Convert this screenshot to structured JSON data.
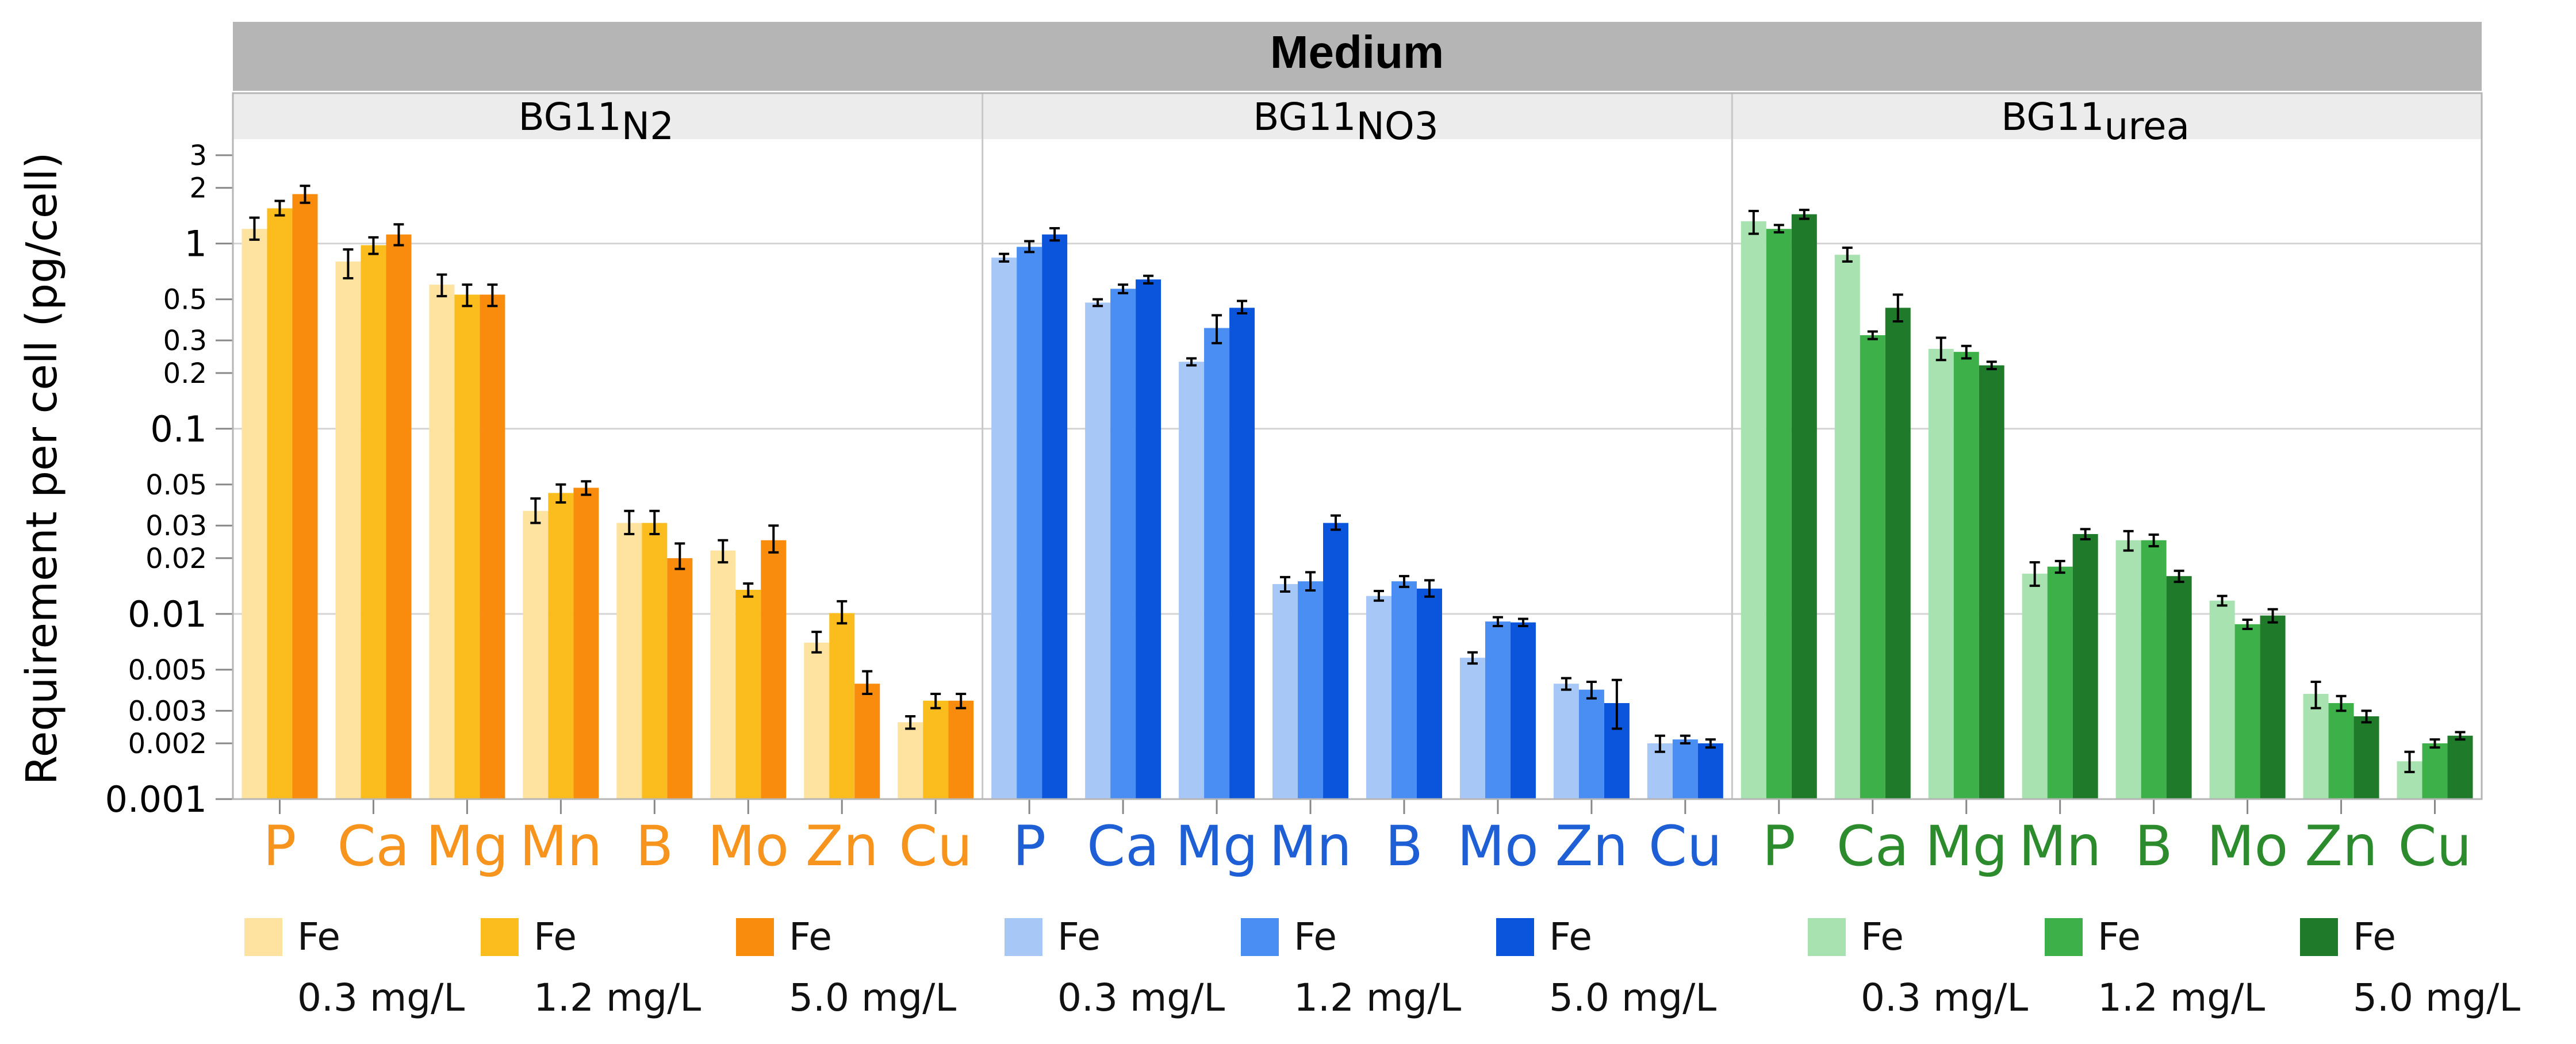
{
  "chart_data": {
    "type": "bar",
    "title": "Medium",
    "ylabel": "Requirement per cell (pg/cell)",
    "yscale": "log",
    "ylim": [
      0.001,
      3
    ],
    "grid": true,
    "yticks": [
      {
        "value": 0.001,
        "label": "0.001",
        "major": true
      },
      {
        "value": 0.002,
        "label": "0.002",
        "major": false
      },
      {
        "value": 0.003,
        "label": "0.003",
        "major": false
      },
      {
        "value": 0.005,
        "label": "0.005",
        "major": false
      },
      {
        "value": 0.01,
        "label": "0.01",
        "major": true
      },
      {
        "value": 0.02,
        "label": "0.02",
        "major": false
      },
      {
        "value": 0.03,
        "label": "0.03",
        "major": false
      },
      {
        "value": 0.05,
        "label": "0.05",
        "major": false
      },
      {
        "value": 0.1,
        "label": "0.1",
        "major": true
      },
      {
        "value": 0.2,
        "label": "0.2",
        "major": false
      },
      {
        "value": 0.3,
        "label": "0.3",
        "major": false
      },
      {
        "value": 0.5,
        "label": "0.5",
        "major": false
      },
      {
        "value": 1,
        "label": "1",
        "major": true
      },
      {
        "value": 2,
        "label": "2",
        "major": false
      },
      {
        "value": 3,
        "label": "3",
        "major": false
      }
    ],
    "categories": [
      "P",
      "Ca",
      "Mg",
      "Mn",
      "B",
      "Mo",
      "Zn",
      "Cu"
    ],
    "legend_position": "bottom",
    "panels": [
      {
        "name": "BG11",
        "subscript": "N2",
        "label_color": "#f7941d",
        "series": [
          {
            "name": "Fe 0.3 mg/L",
            "color": "#fde2a0",
            "values": [
              1.2,
              0.8,
              0.6,
              0.036,
              0.031,
              0.022,
              0.007,
              0.0026
            ],
            "lower": [
              1.05,
              0.65,
              0.52,
              0.031,
              0.027,
              0.019,
              0.0062,
              0.0024
            ],
            "upper": [
              1.38,
              0.93,
              0.68,
              0.042,
              0.036,
              0.025,
              0.008,
              0.0028
            ]
          },
          {
            "name": "Fe 1.2 mg/L",
            "color": "#fbbd1e",
            "values": [
              1.55,
              0.98,
              0.53,
              0.045,
              0.031,
              0.0135,
              0.0101,
              0.0034
            ],
            "lower": [
              1.42,
              0.88,
              0.46,
              0.04,
              0.027,
              0.0124,
              0.0089,
              0.0031
            ],
            "upper": [
              1.7,
              1.08,
              0.6,
              0.05,
              0.036,
              0.0146,
              0.0117,
              0.0037
            ]
          },
          {
            "name": "Fe 5.0 mg/L",
            "color": "#f98c0c",
            "values": [
              1.85,
              1.12,
              0.53,
              0.048,
              0.02,
              0.025,
              0.0042,
              0.0034
            ],
            "lower": [
              1.66,
              0.98,
              0.46,
              0.044,
              0.0175,
              0.0215,
              0.0037,
              0.0031
            ],
            "upper": [
              2.05,
              1.27,
              0.6,
              0.052,
              0.024,
              0.03,
              0.0049,
              0.0037
            ]
          }
        ]
      },
      {
        "name": "BG11",
        "subscript": "NO3",
        "label_color": "#1f5fd6",
        "series": [
          {
            "name": "Fe 0.3 mg/L",
            "color": "#a7c7f7",
            "values": [
              0.84,
              0.48,
              0.23,
              0.0145,
              0.0125,
              0.0058,
              0.0042,
              0.002
            ],
            "lower": [
              0.8,
              0.46,
              0.22,
              0.0132,
              0.0118,
              0.0054,
              0.0039,
              0.0018
            ],
            "upper": [
              0.88,
              0.5,
              0.24,
              0.0158,
              0.0133,
              0.0062,
              0.0045,
              0.0022
            ]
          },
          {
            "name": "Fe 1.2 mg/L",
            "color": "#4a8ef4",
            "values": [
              0.96,
              0.57,
              0.35,
              0.015,
              0.015,
              0.0091,
              0.0039,
              0.0021
            ],
            "lower": [
              0.9,
              0.54,
              0.29,
              0.0134,
              0.014,
              0.0086,
              0.0035,
              0.002
            ],
            "upper": [
              1.03,
              0.6,
              0.41,
              0.0168,
              0.016,
              0.0096,
              0.0043,
              0.0022
            ]
          },
          {
            "name": "Fe 5.0 mg/L",
            "color": "#0a55db",
            "values": [
              1.12,
              0.64,
              0.45,
              0.031,
              0.0137,
              0.009,
              0.0033,
              0.002
            ],
            "lower": [
              1.04,
              0.61,
              0.42,
              0.0285,
              0.0124,
              0.0086,
              0.0024,
              0.0019
            ],
            "upper": [
              1.21,
              0.67,
              0.49,
              0.034,
              0.0152,
              0.0094,
              0.0044,
              0.0021
            ]
          }
        ]
      },
      {
        "name": "BG11",
        "subscript": "urea",
        "label_color": "#2c8b2c",
        "series": [
          {
            "name": "Fe 0.3 mg/L",
            "color": "#a8e2b0",
            "values": [
              1.32,
              0.87,
              0.27,
              0.0165,
              0.025,
              0.0118,
              0.0037,
              0.0016
            ],
            "lower": [
              1.13,
              0.8,
              0.235,
              0.0142,
              0.022,
              0.0111,
              0.0031,
              0.0014
            ],
            "upper": [
              1.5,
              0.95,
              0.31,
              0.019,
              0.028,
              0.0125,
              0.0043,
              0.0018
            ]
          },
          {
            "name": "Fe 1.2 mg/L",
            "color": "#3eb04a",
            "values": [
              1.2,
              0.32,
              0.26,
              0.018,
              0.025,
              0.0088,
              0.0033,
              0.002
            ],
            "lower": [
              1.15,
              0.305,
              0.24,
              0.0167,
              0.0232,
              0.0083,
              0.003,
              0.0019
            ],
            "upper": [
              1.26,
              0.335,
              0.28,
              0.0193,
              0.0268,
              0.0093,
              0.0036,
              0.0021
            ]
          },
          {
            "name": "Fe 5.0 mg/L",
            "color": "#1f7a2a",
            "values": [
              1.44,
              0.45,
              0.22,
              0.027,
              0.016,
              0.0098,
              0.0028,
              0.0022
            ],
            "lower": [
              1.36,
              0.38,
              0.21,
              0.0253,
              0.0149,
              0.009,
              0.0026,
              0.0021
            ],
            "upper": [
              1.52,
              0.53,
              0.23,
              0.0287,
              0.0171,
              0.0106,
              0.003,
              0.0023
            ]
          }
        ]
      }
    ]
  },
  "legend": [
    {
      "fe": "Fe",
      "conc": "0.3 mg/L",
      "color": "#fde2a0"
    },
    {
      "fe": "Fe",
      "conc": "1.2 mg/L",
      "color": "#fbbd1e"
    },
    {
      "fe": "Fe",
      "conc": "5.0 mg/L",
      "color": "#f98c0c"
    },
    {
      "fe": "Fe",
      "conc": "0.3 mg/L",
      "color": "#a7c7f7"
    },
    {
      "fe": "Fe",
      "conc": "1.2 mg/L",
      "color": "#4a8ef4"
    },
    {
      "fe": "Fe",
      "conc": "5.0 mg/L",
      "color": "#0a55db"
    },
    {
      "fe": "Fe",
      "conc": "0.3 mg/L",
      "color": "#a8e2b0"
    },
    {
      "fe": "Fe",
      "conc": "1.2 mg/L",
      "color": "#3eb04a"
    },
    {
      "fe": "Fe",
      "conc": "5.0 mg/L",
      "color": "#1f7a2a"
    }
  ]
}
